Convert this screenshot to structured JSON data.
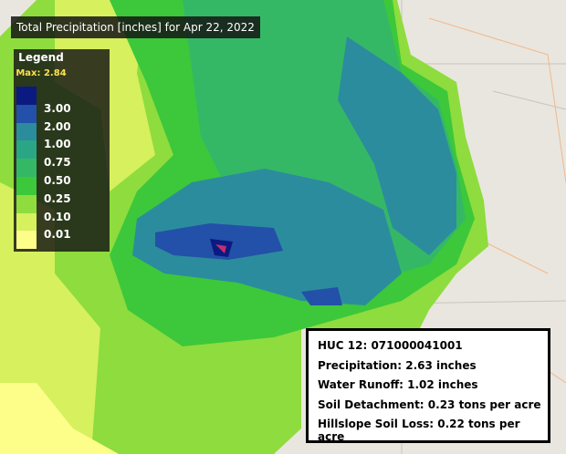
{
  "header": {
    "title": "Total Precipitation [inches] for Apr 22, 2022"
  },
  "legend": {
    "title": "Legend",
    "max": "Max: 2.84",
    "top_color": "#0b1a80",
    "levels": [
      {
        "label": "3.00",
        "color": "#2350a8"
      },
      {
        "label": "2.00",
        "color": "#2b8c9e"
      },
      {
        "label": "1.00",
        "color": "#2ba685"
      },
      {
        "label": "0.75",
        "color": "#35b865"
      },
      {
        "label": "0.50",
        "color": "#3cc83a"
      },
      {
        "label": "0.25",
        "color": "#8fdc3e"
      },
      {
        "label": "0.10",
        "color": "#d6f05e"
      },
      {
        "label": "0.01",
        "color": "#fdfd8a"
      }
    ]
  },
  "info": {
    "lines": [
      "HUC 12: 071000041001",
      "Precipitation: 2.63 inches",
      "Water Runoff: 1.02 inches",
      "Soil Detachment: 0.23 tons per acre",
      "Hillslope Soil Loss: 0.22 tons per acre"
    ]
  }
}
